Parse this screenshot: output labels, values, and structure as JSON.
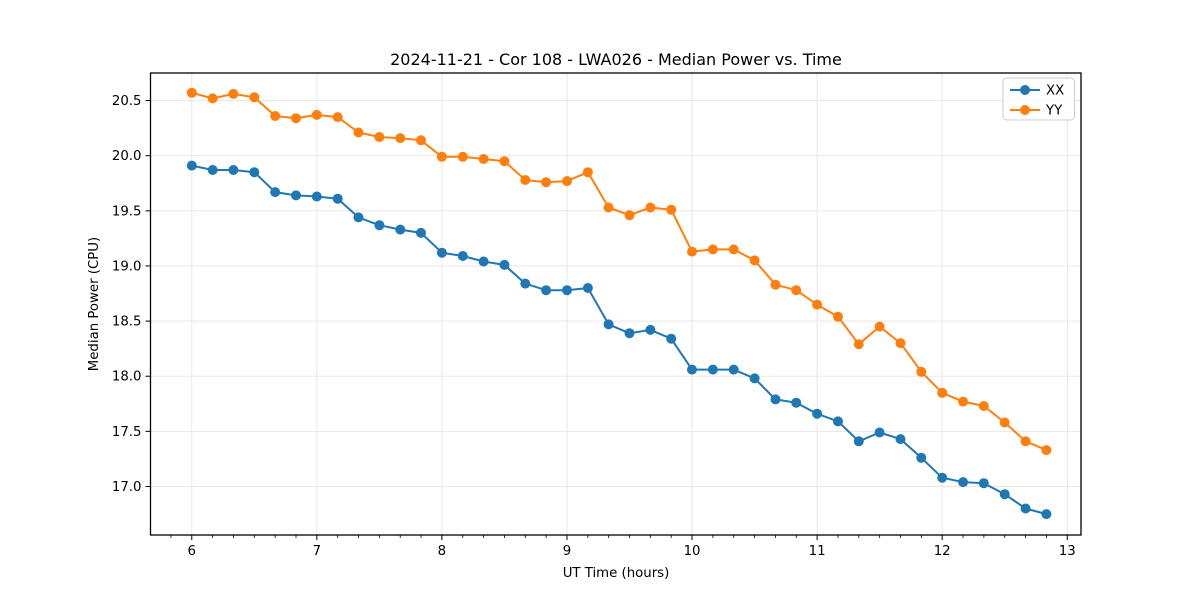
{
  "chart_data": {
    "type": "line",
    "title": "2024-11-21 - Cor 108 - LWA026 - Median Power vs. Time",
    "xlabel": "UT Time (hours)",
    "ylabel": "Median Power (CPU)",
    "xlim": [
      5.67,
      13.11
    ],
    "ylim": [
      16.56,
      20.75
    ],
    "xticks": [
      6,
      7,
      8,
      9,
      10,
      11,
      12,
      13
    ],
    "xtick_labels": [
      "6",
      "7",
      "8",
      "9",
      "10",
      "11",
      "12",
      "13"
    ],
    "yticks": [
      17.0,
      17.5,
      18.0,
      18.5,
      19.0,
      19.5,
      20.0,
      20.5
    ],
    "ytick_labels": [
      "17.0",
      "17.5",
      "18.0",
      "18.5",
      "19.0",
      "19.5",
      "20.0",
      "20.5"
    ],
    "x_minor_tick_step": 0.166667,
    "grid": true,
    "grid_color": "#e5e5e5",
    "legend_position": "upper right",
    "marker": "circle",
    "x": [
      6.0,
      6.167,
      6.333,
      6.5,
      6.667,
      6.833,
      7.0,
      7.167,
      7.333,
      7.5,
      7.667,
      7.833,
      8.0,
      8.167,
      8.333,
      8.5,
      8.667,
      8.833,
      9.0,
      9.167,
      9.333,
      9.5,
      9.667,
      9.833,
      10.0,
      10.167,
      10.333,
      10.5,
      10.667,
      10.833,
      11.0,
      11.167,
      11.333,
      11.5,
      11.667,
      11.833,
      12.0,
      12.167,
      12.333,
      12.5,
      12.667,
      12.833
    ],
    "series": [
      {
        "name": "XX",
        "color": "#1f77b4",
        "values": [
          19.91,
          19.87,
          19.87,
          19.85,
          19.67,
          19.64,
          19.63,
          19.61,
          19.44,
          19.37,
          19.33,
          19.3,
          19.12,
          19.09,
          19.04,
          19.01,
          18.84,
          18.78,
          18.78,
          18.8,
          18.47,
          18.39,
          18.42,
          18.34,
          18.06,
          18.06,
          18.06,
          17.98,
          17.79,
          17.76,
          17.66,
          17.59,
          17.41,
          17.49,
          17.43,
          17.26,
          17.08,
          17.04,
          17.03,
          16.93,
          16.8,
          16.75
        ]
      },
      {
        "name": "YY",
        "color": "#ff7f0e",
        "values": [
          20.57,
          20.52,
          20.56,
          20.53,
          20.36,
          20.34,
          20.37,
          20.35,
          20.21,
          20.17,
          20.16,
          20.14,
          19.99,
          19.99,
          19.97,
          19.95,
          19.78,
          19.76,
          19.77,
          19.85,
          19.53,
          19.46,
          19.53,
          19.51,
          19.13,
          19.15,
          19.15,
          19.05,
          18.83,
          18.78,
          18.65,
          18.54,
          18.29,
          18.45,
          18.3,
          18.04,
          17.85,
          17.77,
          17.73,
          17.58,
          17.41,
          17.33
        ]
      }
    ]
  }
}
